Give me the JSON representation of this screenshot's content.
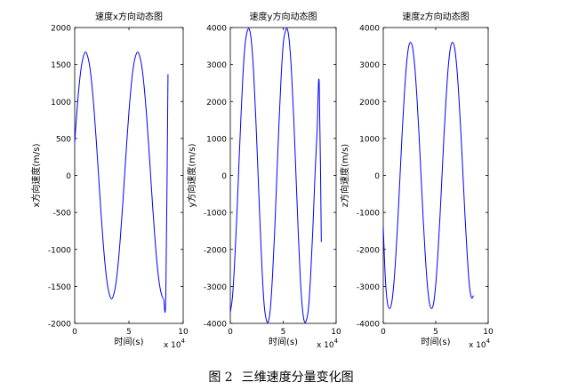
{
  "caption": {
    "figure_no": "图 2",
    "text": "三维速度分量变化图"
  },
  "chart_data": [
    {
      "type": "line",
      "title": "速度x方向动态图",
      "xlabel": "时间(s)",
      "ylabel": "x方向速度(m/s)",
      "x_exponent": "x 10",
      "x_exponent_power": "4",
      "xlim": [
        0,
        100000
      ],
      "ylim": [
        -2000,
        2000
      ],
      "xticks": [
        0,
        50000,
        100000
      ],
      "xtick_labels": [
        "0",
        "5",
        "10"
      ],
      "yticks": [
        -2000,
        -1500,
        -1000,
        -500,
        0,
        500,
        1000,
        1500,
        2000
      ],
      "ytick_labels": [
        "-2000",
        "-1500",
        "-1000",
        "-500",
        "0",
        "500",
        "1000",
        "1500",
        "2000"
      ],
      "grid": false,
      "line_color": "#0000ff",
      "series": [
        {
          "x": [
            0,
            2000,
            4000,
            6000,
            8000,
            10000,
            12000,
            14000,
            16000,
            18000,
            20000,
            22000,
            24000,
            26000,
            28000,
            30000,
            32000,
            34000,
            36000,
            38000,
            40000,
            42000,
            44000,
            46000,
            48000,
            50000,
            52000,
            54000,
            56000,
            58000,
            60000,
            62000,
            64000,
            66000,
            68000,
            70000,
            72000,
            74000,
            76000,
            78000,
            80000,
            82000,
            84000,
            86000
          ],
          "y": [
            450,
            858,
            1204,
            1459,
            1608,
            1670,
            1608,
            1459,
            1204,
            858,
            450,
            0,
            -450,
            -858,
            -1204,
            -1459,
            -1608,
            -1670,
            -1608,
            -1459,
            -1204,
            -858,
            -450,
            0,
            450,
            858,
            1204,
            1459,
            1608,
            1670,
            1608,
            1459,
            1204,
            858,
            450,
            0,
            -450,
            -858,
            -1204,
            -1459,
            -1608,
            -1670,
            -1608,
            1370
          ]
        }
      ]
    },
    {
      "type": "line",
      "title": "速度y方向动态图",
      "xlabel": "时间(s)",
      "ylabel": "y方向速度(m/s)",
      "x_exponent": "x 10",
      "x_exponent_power": "4",
      "xlim": [
        0,
        100000
      ],
      "ylim": [
        -4000,
        4000
      ],
      "xticks": [
        0,
        50000,
        100000
      ],
      "xtick_labels": [
        "0",
        "5",
        "10"
      ],
      "yticks": [
        -4000,
        -3000,
        -2000,
        -1000,
        0,
        1000,
        2000,
        3000,
        4000
      ],
      "ytick_labels": [
        "-4000",
        "-3000",
        "-2000",
        "-1000",
        "0",
        "1000",
        "2000",
        "3000",
        "4000"
      ],
      "grid": false,
      "line_color": "#0000ff",
      "series": [
        {
          "x": [
            0,
            2000,
            4000,
            6000,
            8000,
            10000,
            12000,
            14000,
            16000,
            18000,
            20000,
            22000,
            24000,
            26000,
            28000,
            30000,
            32000,
            34000,
            36000,
            38000,
            40000,
            42000,
            44000,
            46000,
            48000,
            50000,
            52000,
            54000,
            56000,
            58000,
            60000,
            62000,
            64000,
            66000,
            68000,
            70000,
            72000,
            74000,
            76000,
            78000,
            80000,
            82000,
            84000,
            86000
          ],
          "y": [
            -3700,
            -3300,
            -2400,
            -1200,
            200,
            1550,
            2750,
            3550,
            3900,
            3950,
            3600,
            2800,
            1600,
            200,
            -1250,
            -2550,
            -3500,
            -3900,
            -3950,
            -3550,
            -2650,
            -1450,
            0,
            1400,
            2650,
            3550,
            3900,
            3950,
            3550,
            2700,
            1500,
            50,
            -1400,
            -2700,
            -3550,
            -3950,
            -3900,
            -3550,
            -2650,
            -1450,
            0,
            1200,
            2500,
            -1800
          ]
        }
      ]
    },
    {
      "type": "line",
      "title": "速度z方向动态图",
      "xlabel": "时间(s)",
      "ylabel": "z方向速度(m/s)",
      "x_exponent": "x 10",
      "x_exponent_power": "4",
      "xlim": [
        0,
        100000
      ],
      "ylim": [
        -4000,
        4000
      ],
      "xticks": [
        0,
        50000,
        100000
      ],
      "xtick_labels": [
        "0",
        "5",
        "10"
      ],
      "yticks": [
        -4000,
        -3000,
        -2000,
        -1000,
        0,
        1000,
        2000,
        3000,
        4000
      ],
      "ytick_labels": [
        "-4000",
        "-3000",
        "-2000",
        "-1000",
        "0",
        "1000",
        "2000",
        "3000",
        "4000"
      ],
      "grid": false,
      "line_color": "#0000ff",
      "series": [
        {
          "x": [
            0,
            2000,
            4000,
            6000,
            8000,
            10000,
            12000,
            14000,
            16000,
            18000,
            20000,
            22000,
            24000,
            26000,
            28000,
            30000,
            32000,
            34000,
            36000,
            38000,
            40000,
            42000,
            44000,
            46000,
            48000,
            50000,
            52000,
            54000,
            56000,
            58000,
            60000,
            62000,
            64000,
            66000,
            68000,
            70000,
            72000,
            74000,
            76000,
            78000,
            80000,
            82000,
            84000,
            86000
          ],
          "y": [
            -1400,
            -2800,
            -3450,
            -3600,
            -3450,
            -2950,
            -2150,
            -1150,
            0,
            1150,
            2150,
            2950,
            3450,
            3600,
            3450,
            2950,
            2150,
            1150,
            0,
            -1150,
            -2150,
            -2950,
            -3450,
            -3600,
            -3450,
            -2950,
            -2150,
            -1150,
            0,
            1150,
            2150,
            2950,
            3450,
            3600,
            3450,
            2950,
            2150,
            1150,
            0,
            -1150,
            -2150,
            -2950,
            -3300,
            -3250
          ]
        }
      ]
    }
  ]
}
